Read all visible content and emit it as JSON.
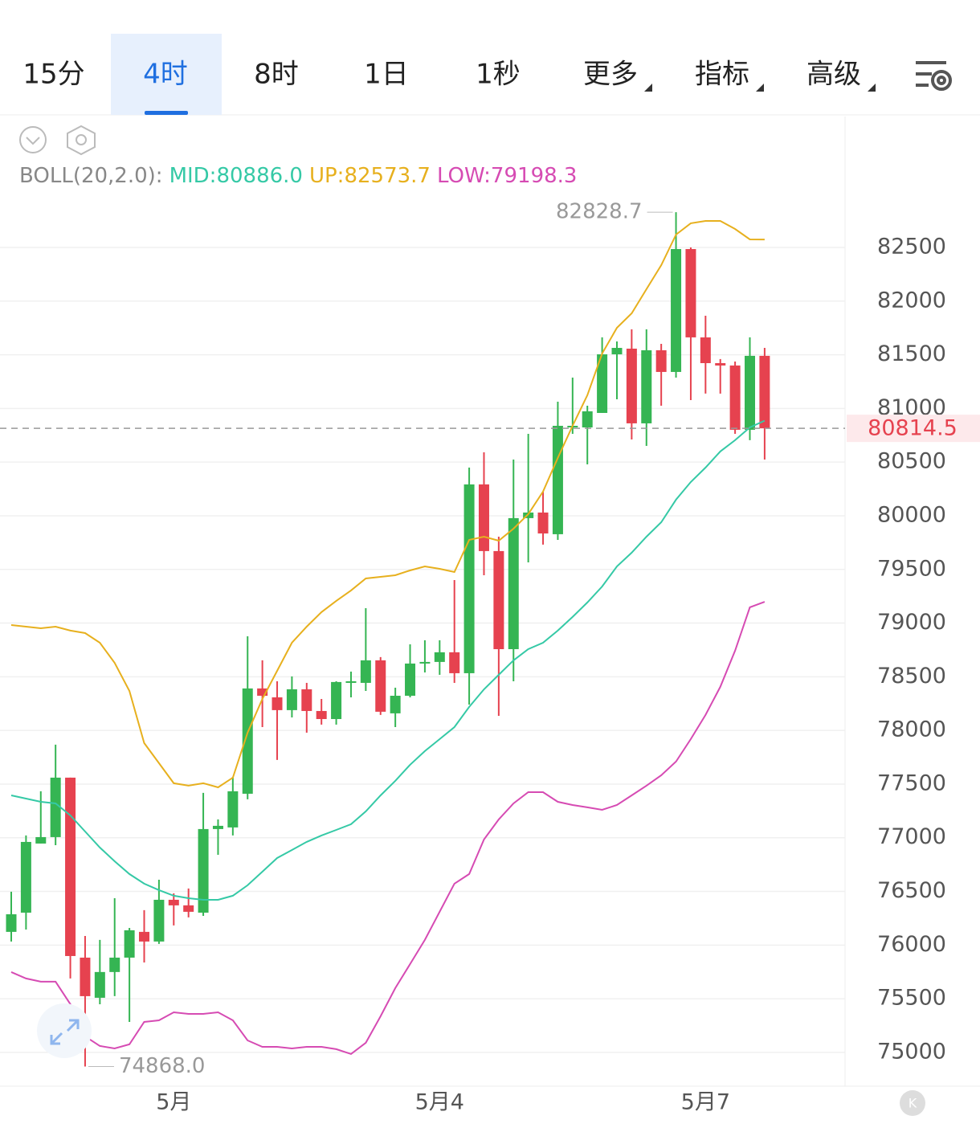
{
  "tabs": [
    "15分",
    "4时",
    "8时",
    "1日",
    "1秒",
    "更多",
    "指标",
    "高级"
  ],
  "active_tab": 1,
  "chart_data": {
    "type": "candlestick",
    "indicator_label": "BOLL(20,2.0):",
    "categories": [
      null,
      null,
      null,
      null,
      null,
      null,
      null,
      null,
      null,
      null,
      null,
      "5月",
      null,
      null,
      null,
      null,
      null,
      null,
      null,
      null,
      null,
      null,
      null,
      null,
      null,
      null,
      null,
      null,
      null,
      "5月4",
      null,
      null,
      null,
      null,
      null,
      null,
      null,
      null,
      null,
      null,
      null,
      null,
      null,
      null,
      null,
      null,
      null,
      "5月7",
      null,
      null,
      null,
      null
    ],
    "open": [
      76123,
      76302,
      76946,
      77006,
      77560,
      75883,
      75509,
      75749,
      75883,
      76123,
      76033,
      76422,
      76370,
      76302,
      77081,
      77096,
      77410,
      78391,
      78308,
      78189,
      78383,
      78181,
      78106,
      78443,
      78443,
      78653,
      78159,
      78323,
      78623,
      78638,
      78728,
      78533,
      80292,
      79671,
      78757,
      79978,
      80030,
      79828,
      80823,
      80823,
      80958,
      81504,
      81557,
      80861,
      81542,
      81340,
      82485,
      81662,
      81422,
      81400,
      80801,
      81490
    ],
    "high": [
      76497,
      77021,
      77433,
      77867,
      77560,
      76085,
      76048,
      76437,
      76160,
      76325,
      76609,
      76482,
      76527,
      77418,
      77171,
      77567,
      78877,
      78653,
      78458,
      78503,
      78443,
      78293,
      78458,
      78548,
      79139,
      78683,
      78398,
      78802,
      78840,
      78840,
      79401,
      80449,
      80591,
      79805,
      80524,
      80763,
      80225,
      81063,
      81287,
      81025,
      81662,
      81624,
      81737,
      81737,
      81602,
      82828.7,
      82500,
      81864,
      81460,
      81437,
      81662,
      81564
    ],
    "low": [
      76033,
      76145,
      76946,
      76931,
      75689,
      74868,
      75449,
      75524,
      75284,
      75838,
      76011,
      76183,
      76258,
      76272,
      76841,
      77021,
      77358,
      78031,
      77725,
      78121,
      77979,
      78054,
      78054,
      78308,
      78368,
      78144,
      78031,
      78308,
      78540,
      78518,
      78443,
      78241,
      79446,
      78136,
      78458,
      79566,
      79731,
      79775,
      80763,
      80479,
      80958,
      81085,
      80711,
      80651,
      81025,
      81287,
      81078,
      81138,
      81138,
      80763,
      80704,
      80524
    ],
    "close": [
      76287,
      76961,
      77006,
      77560,
      75898,
      75524,
      75749,
      75883,
      76138,
      76033,
      76422,
      76370,
      76310,
      77081,
      77111,
      77433,
      78391,
      78323,
      78189,
      78383,
      78181,
      78106,
      78451,
      78458,
      78653,
      78174,
      78323,
      78623,
      78638,
      78728,
      78533,
      80292,
      79671,
      78757,
      79978,
      80030,
      79835,
      80838,
      80838,
      80973,
      81504,
      81564,
      80861,
      81542,
      81340,
      82485,
      81662,
      81422,
      81400,
      80801,
      81490,
      80814.5
    ],
    "up_color": "#35b553",
    "down_color": "#e6424f",
    "series": [
      {
        "name": "MID:80886.0",
        "color": "#35c9a6",
        "values": [
          77395,
          77365,
          77335,
          77320,
          77208,
          77058,
          76909,
          76781,
          76662,
          76572,
          76512,
          76460,
          76437,
          76422,
          76422,
          76460,
          76557,
          76684,
          76811,
          76886,
          76961,
          77021,
          77073,
          77126,
          77246,
          77395,
          77530,
          77680,
          77807,
          77919,
          78031,
          78219,
          78383,
          78518,
          78653,
          78757,
          78817,
          78930,
          79057,
          79192,
          79341,
          79528,
          79656,
          79805,
          79940,
          80150,
          80314,
          80449,
          80599,
          80704,
          80823,
          80886.0
        ]
      },
      {
        "name": "UP:82573.7",
        "color": "#e7b01e",
        "values": [
          78982,
          78967,
          78952,
          78967,
          78930,
          78907,
          78817,
          78630,
          78368,
          77882,
          77695,
          77508,
          77485,
          77508,
          77470,
          77560,
          77979,
          78293,
          78555,
          78817,
          78967,
          79102,
          79207,
          79304,
          79416,
          79431,
          79446,
          79491,
          79528,
          79506,
          79476,
          79775,
          79805,
          79768,
          79880,
          80015,
          80225,
          80539,
          80838,
          81123,
          81512,
          81751,
          81886,
          82111,
          82335,
          82620,
          82725,
          82747,
          82747,
          82672,
          82575,
          82573.7
        ]
      },
      {
        "name": "LOW:79198.3",
        "color": "#d64bb3",
        "values": [
          75749,
          75689,
          75659,
          75659,
          75449,
          75150,
          75060,
          75037,
          75075,
          75284,
          75299,
          75374,
          75359,
          75359,
          75374,
          75299,
          75112,
          75052,
          75052,
          75037,
          75052,
          75052,
          75030,
          74985,
          75090,
          75337,
          75599,
          75823,
          76048,
          76310,
          76572,
          76662,
          76984,
          77171,
          77320,
          77425,
          77425,
          77335,
          77305,
          77283,
          77260,
          77305,
          77395,
          77485,
          77582,
          77710,
          77919,
          78144,
          78406,
          78743,
          79147,
          79198.3
        ]
      }
    ],
    "annotations": [
      {
        "value": 82828.7,
        "label": "82828.7"
      },
      {
        "value": 74868,
        "label": "74868.0"
      }
    ],
    "last_price": 80814.5,
    "ylim": [
      74700,
      83720
    ],
    "yticks": [
      75000,
      75500,
      76000,
      76500,
      77000,
      77500,
      78000,
      78500,
      79000,
      79500,
      80000,
      80500,
      81000,
      81500,
      82000,
      82500
    ],
    "grid": true
  }
}
